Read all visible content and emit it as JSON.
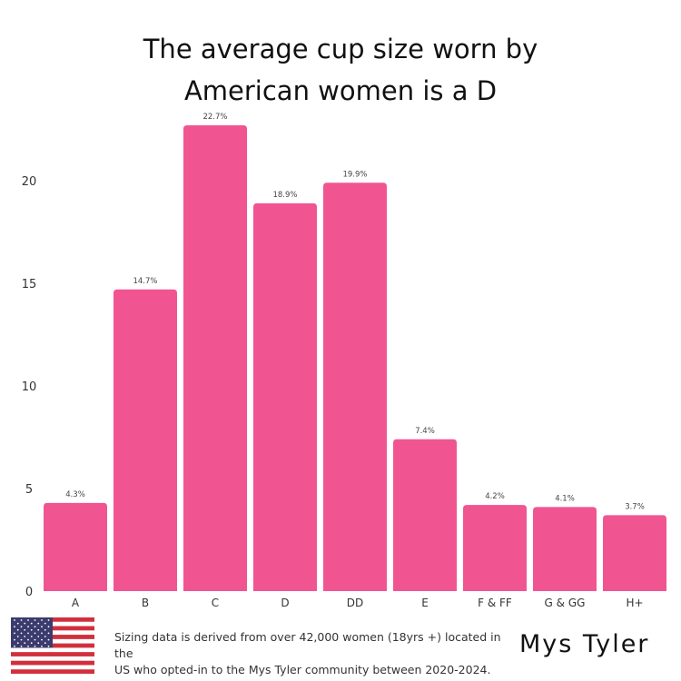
{
  "title_line1": "The average cup size worn by",
  "title_line2": "American women is a D",
  "footnote_line1": "Sizing data is derived from over 42,000 women (18yrs +)  located in the",
  "footnote_line2": "US who opted-in to the Mys Tyler community between 2020-2024.",
  "brand": "Mys Tyler",
  "flag_icon": "us-flag-icon",
  "chart_data": {
    "type": "bar",
    "categories": [
      "A",
      "B",
      "C",
      "D",
      "DD",
      "E",
      "F & FF",
      "G & GG",
      "H+"
    ],
    "values": [
      4.3,
      14.7,
      22.7,
      18.9,
      19.9,
      7.4,
      4.2,
      4.1,
      3.7
    ],
    "data_labels": [
      "4.3%",
      "14.7%",
      "22.7%",
      "18.9%",
      "19.9%",
      "7.4%",
      "4.2%",
      "4.1%",
      "3.7%"
    ],
    "yticks": [
      0,
      5,
      10,
      15,
      20
    ],
    "ylim": [
      0,
      22.7
    ],
    "grid": false,
    "bar_color": "#F05592"
  }
}
